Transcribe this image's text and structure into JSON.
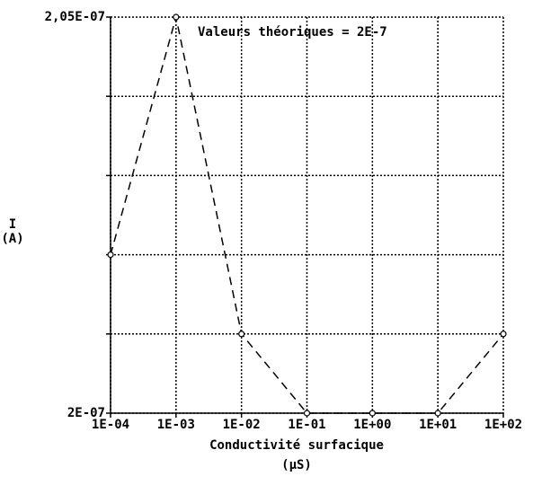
{
  "chart_data": {
    "type": "line",
    "annotation": "Valeurs théoriques = 2E-7",
    "ylabel": [
      "I",
      "(A)"
    ],
    "xlabel": [
      "Conductivité surfacique",
      "(µS)"
    ],
    "x": [
      0.0001,
      0.001,
      0.01,
      0.1,
      1,
      10,
      100
    ],
    "xscale": "log",
    "xlim": [
      0.0001,
      100
    ],
    "xticks": [
      {
        "value": 0.0001,
        "label": "1E-04"
      },
      {
        "value": 0.001,
        "label": "1E-03"
      },
      {
        "value": 0.01,
        "label": "1E-02"
      },
      {
        "value": 0.1,
        "label": "1E-01"
      },
      {
        "value": 1,
        "label": "1E+00"
      },
      {
        "value": 10,
        "label": "1E+01"
      },
      {
        "value": 100,
        "label": "1E+02"
      }
    ],
    "ylim": [
      2e-07,
      2.05e-07
    ],
    "yticks": [
      {
        "value": 2e-07,
        "label": "2E-07"
      },
      {
        "value": 2.01e-07,
        "label": null
      },
      {
        "value": 2.02e-07,
        "label": null
      },
      {
        "value": 2.03e-07,
        "label": null
      },
      {
        "value": 2.04e-07,
        "label": null
      },
      {
        "value": 2.05e-07,
        "label": "2,05E-07"
      }
    ],
    "grid": true,
    "series": [
      {
        "name": null,
        "color": "#000000",
        "values": [
          2.02e-07,
          2.05e-07,
          2.01e-07,
          2e-07,
          2e-07,
          2e-07,
          2.01e-07
        ]
      }
    ]
  }
}
